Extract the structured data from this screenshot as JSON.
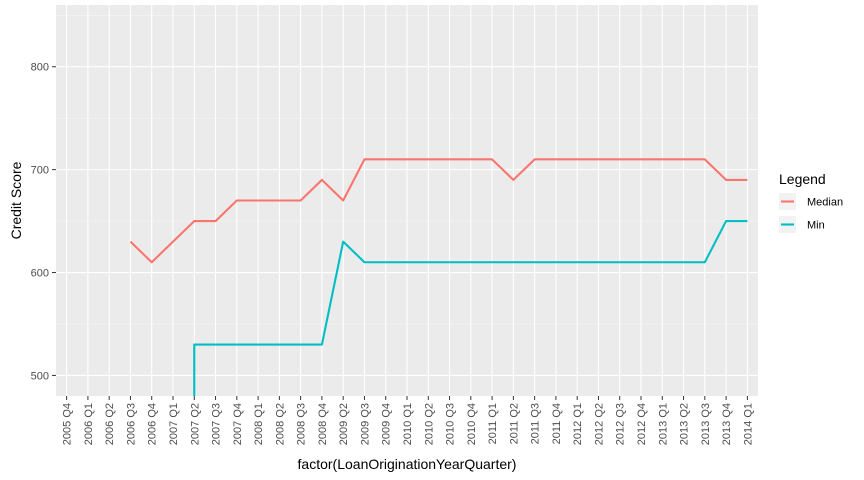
{
  "chart_data": {
    "type": "line",
    "title": "",
    "xlabel": "factor(LoanOriginationYearQuarter)",
    "ylabel": "Credit Score",
    "ylim": [
      480,
      860
    ],
    "yticks": [
      500,
      600,
      700,
      800
    ],
    "grid": true,
    "legend_title": "Legend",
    "legend_position": "right",
    "categories": [
      "2005 Q4",
      "2006 Q1",
      "2006 Q2",
      "2006 Q3",
      "2006 Q4",
      "2007 Q1",
      "2007 Q2",
      "2007 Q3",
      "2007 Q4",
      "2008 Q1",
      "2008 Q2",
      "2008 Q3",
      "2008 Q4",
      "2009 Q2",
      "2009 Q3",
      "2009 Q4",
      "2010 Q1",
      "2010 Q2",
      "2010 Q3",
      "2010 Q4",
      "2011 Q1",
      "2011 Q2",
      "2011 Q3",
      "2011 Q4",
      "2012 Q1",
      "2012 Q2",
      "2012 Q3",
      "2012 Q4",
      "2013 Q1",
      "2013 Q2",
      "2013 Q3",
      "2013 Q4",
      "2014 Q1"
    ],
    "series": [
      {
        "name": "Median",
        "color": "#F8766D",
        "values": [
          null,
          null,
          null,
          630,
          610,
          630,
          650,
          650,
          670,
          670,
          670,
          670,
          690,
          670,
          710,
          710,
          710,
          710,
          710,
          710,
          710,
          690,
          710,
          710,
          710,
          710,
          710,
          710,
          710,
          710,
          710,
          690,
          690
        ]
      },
      {
        "name": "Min",
        "color": "#00BFC4",
        "values": [
          null,
          null,
          null,
          null,
          null,
          null,
          530,
          530,
          530,
          530,
          530,
          530,
          530,
          630,
          610,
          610,
          610,
          610,
          610,
          610,
          610,
          610,
          610,
          610,
          610,
          610,
          610,
          610,
          610,
          610,
          610,
          650,
          650
        ],
        "note_start": "drops below axis at 2007 Q2"
      }
    ]
  }
}
